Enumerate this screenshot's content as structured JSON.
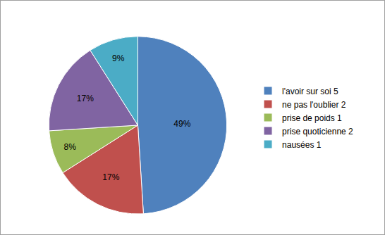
{
  "chart_data": {
    "type": "pie",
    "categories": [
      "l'avoir sur soi 5",
      "ne pas l'oublier 2",
      "prise de poids 1",
      "prise quoticienne 2",
      "nausées 1"
    ],
    "values": [
      49,
      17,
      8,
      17,
      9
    ],
    "value_labels": [
      "49%",
      "17%",
      "8%",
      "17%",
      "9%"
    ],
    "colors": [
      "#4f81bd",
      "#c0504d",
      "#9bbb59",
      "#8064a2",
      "#4bacc6"
    ],
    "data_labels": true,
    "legend": "right"
  }
}
